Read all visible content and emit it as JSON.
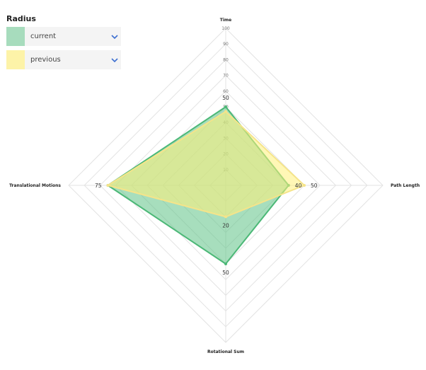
{
  "legend": {
    "title": "Radius",
    "items": [
      {
        "label": "current",
        "color": "#a7dcbd"
      },
      {
        "label": "previous",
        "color": "#fdf3a8"
      }
    ]
  },
  "chart_data": {
    "type": "radar",
    "axes": [
      "Time",
      "Path Length",
      "Rotational Sum",
      "Translational Motions"
    ],
    "r_ticks": [
      10,
      20,
      30,
      40,
      50,
      60,
      70,
      80,
      90,
      100
    ],
    "rlim": [
      0,
      100
    ],
    "series": [
      {
        "name": "current",
        "values": [
          50,
          40,
          50,
          75
        ],
        "fill": "#5fc287",
        "stroke": "#4cb877"
      },
      {
        "name": "previous",
        "values": [
          47,
          50,
          20,
          75
        ],
        "fill": "#fff07a",
        "stroke": "#f5e48a"
      }
    ],
    "value_labels": [
      {
        "axis": 0,
        "text": "50"
      },
      {
        "axis": 1,
        "text": "40"
      },
      {
        "axis": 1,
        "text": "50"
      },
      {
        "axis": 2,
        "text": "20"
      },
      {
        "axis": 2,
        "text": "50"
      },
      {
        "axis": 3,
        "text": "75"
      }
    ]
  }
}
